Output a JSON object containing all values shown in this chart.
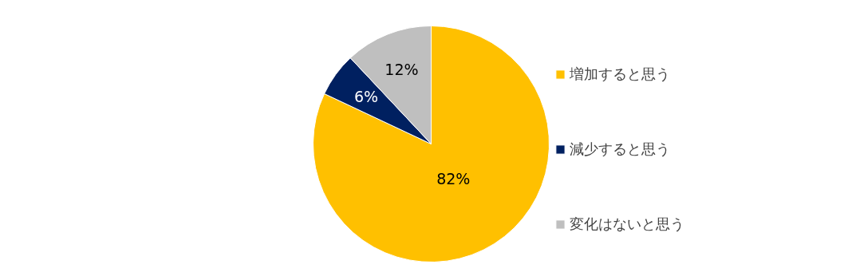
{
  "chart_data": {
    "type": "pie",
    "categories": [
      "増加すると思う",
      "減少すると思う",
      "変化はないと思う"
    ],
    "values": [
      82,
      6,
      12
    ],
    "colors": [
      "#ffc000",
      "#002060",
      "#bfbfbf"
    ],
    "value_labels": [
      "82%",
      "6%",
      "12%"
    ],
    "legend": "right"
  }
}
